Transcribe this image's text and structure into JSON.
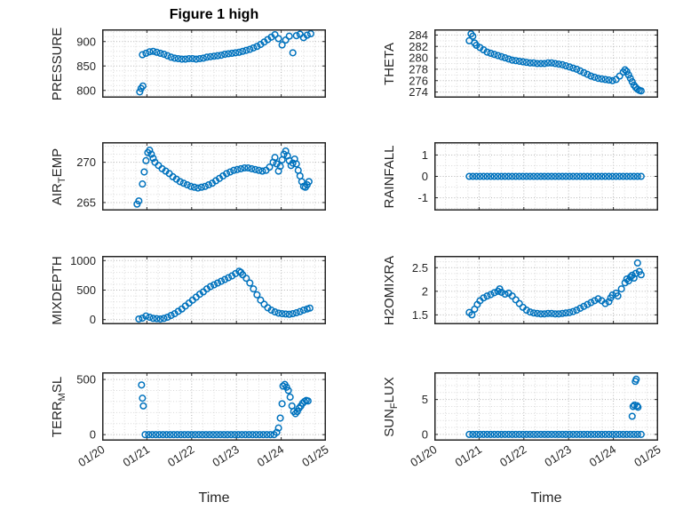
{
  "title": "Figure 1 high",
  "x_axis": {
    "label": "Time"
  },
  "colors": {
    "marker": "#0072BD",
    "axis": "#262626",
    "grid_major": "#b3b3b3",
    "grid_minor": "#d9d9d9"
  },
  "chart_data": [
    {
      "name": "PRESSURE",
      "type": "scatter",
      "ylabel": {
        "pre": "PRESSURE",
        "sub": "",
        "post": ""
      },
      "xlim": [
        20,
        25
      ],
      "ylim": [
        785,
        925
      ],
      "xticks": [
        20,
        21,
        22,
        23,
        24,
        25
      ],
      "xtick_labels": [
        "01/20",
        "01/21",
        "01/22",
        "01/23",
        "01/24",
        "01/25"
      ],
      "yticks": [
        800,
        850,
        900
      ],
      "x_minor": 0.25,
      "y_minor": 10,
      "show_x_labels": false,
      "x": [
        20.84,
        20.87,
        20.91,
        20.9,
        20.98,
        21.06,
        21.14,
        21.22,
        21.3,
        21.38,
        21.46,
        21.54,
        21.62,
        21.7,
        21.78,
        21.86,
        21.94,
        22.02,
        22.1,
        22.18,
        22.26,
        22.34,
        22.42,
        22.5,
        22.58,
        22.66,
        22.74,
        22.82,
        22.9,
        22.98,
        23.06,
        23.14,
        23.22,
        23.3,
        23.38,
        23.46,
        23.54,
        23.62,
        23.7,
        23.78,
        23.86,
        23.94,
        24.02,
        24.1,
        24.18,
        24.26,
        24.34,
        24.42,
        24.5,
        24.58,
        24.66
      ],
      "y": [
        797,
        804,
        809,
        873,
        876,
        879,
        880,
        878,
        876,
        874,
        871,
        868,
        866,
        865,
        864,
        864,
        865,
        865,
        864,
        865,
        866,
        868,
        869,
        870,
        871,
        872,
        874,
        875,
        876,
        877,
        878,
        880,
        882,
        884,
        887,
        890,
        894,
        899,
        904,
        909,
        914,
        906,
        893,
        903,
        911,
        877,
        912,
        915,
        908,
        913,
        916
      ]
    },
    {
      "name": "THETA",
      "type": "scatter",
      "ylabel": {
        "pre": "THETA",
        "sub": "",
        "post": ""
      },
      "xlim": [
        20,
        25
      ],
      "ylim": [
        273,
        285
      ],
      "xticks": [
        20,
        21,
        22,
        23,
        24,
        25
      ],
      "xtick_labels": [
        "01/20",
        "01/21",
        "01/22",
        "01/23",
        "01/24",
        "01/25"
      ],
      "yticks": [
        274,
        276,
        278,
        280,
        282,
        284
      ],
      "x_minor": 0.25,
      "y_minor": 1,
      "show_x_labels": false,
      "x": [
        20.78,
        20.82,
        20.86,
        20.9,
        20.94,
        21.02,
        21.1,
        21.18,
        21.26,
        21.34,
        21.42,
        21.5,
        21.58,
        21.66,
        21.74,
        21.82,
        21.9,
        21.98,
        22.06,
        22.14,
        22.22,
        22.3,
        22.38,
        22.46,
        22.54,
        22.62,
        22.7,
        22.78,
        22.86,
        22.94,
        23.02,
        23.1,
        23.18,
        23.26,
        23.34,
        23.42,
        23.5,
        23.58,
        23.66,
        23.74,
        23.82,
        23.9,
        23.98,
        24.06,
        24.14,
        24.22,
        24.26,
        24.3,
        24.34,
        24.38,
        24.42,
        24.46,
        24.5,
        24.54,
        24.58,
        24.62
      ],
      "y": [
        283.0,
        284.2,
        283.8,
        282.6,
        282.2,
        281.8,
        281.4,
        281.0,
        280.8,
        280.6,
        280.4,
        280.2,
        280.0,
        279.8,
        279.6,
        279.5,
        279.4,
        279.3,
        279.2,
        279.1,
        279.1,
        279.0,
        279.0,
        279.0,
        279.1,
        279.1,
        279.0,
        278.9,
        278.8,
        278.6,
        278.4,
        278.2,
        278.0,
        277.7,
        277.4,
        277.1,
        276.8,
        276.6,
        276.4,
        276.3,
        276.2,
        276.1,
        276.0,
        276.2,
        276.8,
        277.5,
        277.9,
        277.6,
        277.0,
        276.4,
        275.8,
        275.2,
        274.8,
        274.5,
        274.3,
        274.2
      ]
    },
    {
      "name": "AIR_TEMP",
      "type": "scatter",
      "ylabel": {
        "pre": "AIR",
        "sub": "T",
        "post": "EMP"
      },
      "xlim": [
        20,
        25
      ],
      "ylim": [
        264,
        272.5
      ],
      "xticks": [
        20,
        21,
        22,
        23,
        24,
        25
      ],
      "xtick_labels": [
        "01/20",
        "01/21",
        "01/22",
        "01/23",
        "01/24",
        "01/25"
      ],
      "yticks": [
        265,
        270
      ],
      "x_minor": 0.25,
      "y_minor": 1,
      "show_x_labels": false,
      "x": [
        20.78,
        20.82,
        20.9,
        20.94,
        20.98,
        21.02,
        21.06,
        21.1,
        21.14,
        21.18,
        21.26,
        21.34,
        21.42,
        21.5,
        21.58,
        21.66,
        21.74,
        21.82,
        21.9,
        21.98,
        22.06,
        22.14,
        22.22,
        22.3,
        22.38,
        22.46,
        22.54,
        22.62,
        22.7,
        22.78,
        22.86,
        22.94,
        23.02,
        23.1,
        23.18,
        23.26,
        23.34,
        23.42,
        23.5,
        23.58,
        23.66,
        23.74,
        23.82,
        23.86,
        23.9,
        23.94,
        23.98,
        24.02,
        24.06,
        24.1,
        24.14,
        24.18,
        24.22,
        24.26,
        24.3,
        24.34,
        24.38,
        24.42,
        24.46,
        24.5,
        24.54,
        24.58,
        24.62
      ],
      "y": [
        264.8,
        265.2,
        267.3,
        268.8,
        270.2,
        271.2,
        271.5,
        271.0,
        270.5,
        270.0,
        269.6,
        269.2,
        268.9,
        268.6,
        268.2,
        267.9,
        267.6,
        267.4,
        267.2,
        267.0,
        266.9,
        266.8,
        266.9,
        267.0,
        267.2,
        267.4,
        267.7,
        268.0,
        268.3,
        268.6,
        268.8,
        269.0,
        269.1,
        269.2,
        269.3,
        269.3,
        269.2,
        269.1,
        269.0,
        268.9,
        269.0,
        269.4,
        270.0,
        270.6,
        269.8,
        268.9,
        269.5,
        270.3,
        271.0,
        271.4,
        270.8,
        270.2,
        269.6,
        269.9,
        270.4,
        269.8,
        269.0,
        268.3,
        267.6,
        267.0,
        266.9,
        267.2,
        267.6
      ]
    },
    {
      "name": "RAINFALL",
      "type": "scatter",
      "ylabel": {
        "pre": "RAINFALL",
        "sub": "",
        "post": ""
      },
      "xlim": [
        20,
        25
      ],
      "ylim": [
        -1.6,
        1.6
      ],
      "xticks": [
        20,
        21,
        22,
        23,
        24,
        25
      ],
      "xtick_labels": [
        "01/20",
        "01/21",
        "01/22",
        "01/23",
        "01/24",
        "01/25"
      ],
      "yticks": [
        -1,
        0,
        1
      ],
      "x_minor": 0.25,
      "y_minor": 0.5,
      "show_x_labels": false,
      "x": [
        20.78,
        20.86,
        20.94,
        21.02,
        21.1,
        21.18,
        21.26,
        21.34,
        21.42,
        21.5,
        21.58,
        21.66,
        21.74,
        21.82,
        21.9,
        21.98,
        22.06,
        22.14,
        22.22,
        22.3,
        22.38,
        22.46,
        22.54,
        22.62,
        22.7,
        22.78,
        22.86,
        22.94,
        23.02,
        23.1,
        23.18,
        23.26,
        23.34,
        23.42,
        23.5,
        23.58,
        23.66,
        23.74,
        23.82,
        23.9,
        23.98,
        24.06,
        24.14,
        24.22,
        24.3,
        24.38,
        24.46,
        24.54,
        24.62
      ],
      "y": [
        0,
        0,
        0,
        0,
        0,
        0,
        0,
        0,
        0,
        0,
        0,
        0,
        0,
        0,
        0,
        0,
        0,
        0,
        0,
        0,
        0,
        0,
        0,
        0,
        0,
        0,
        0,
        0,
        0,
        0,
        0,
        0,
        0,
        0,
        0,
        0,
        0,
        0,
        0,
        0,
        0,
        0,
        0,
        0,
        0,
        0,
        0,
        0,
        0
      ]
    },
    {
      "name": "MIXDEPTH",
      "type": "scatter",
      "ylabel": {
        "pre": "MIXDEPTH",
        "sub": "",
        "post": ""
      },
      "xlim": [
        20,
        25
      ],
      "ylim": [
        -80,
        1080
      ],
      "xticks": [
        20,
        21,
        22,
        23,
        24,
        25
      ],
      "xtick_labels": [
        "01/20",
        "01/21",
        "01/22",
        "01/23",
        "01/24",
        "01/25"
      ],
      "yticks": [
        0,
        500,
        1000
      ],
      "x_minor": 0.25,
      "y_minor": 100,
      "show_x_labels": false,
      "x": [
        20.82,
        20.9,
        20.98,
        21.06,
        21.14,
        21.22,
        21.3,
        21.38,
        21.46,
        21.54,
        21.62,
        21.7,
        21.78,
        21.86,
        21.94,
        22.02,
        22.1,
        22.18,
        22.26,
        22.34,
        22.42,
        22.5,
        22.58,
        22.66,
        22.74,
        22.82,
        22.9,
        22.98,
        23.06,
        23.1,
        23.14,
        23.22,
        23.3,
        23.38,
        23.46,
        23.54,
        23.62,
        23.7,
        23.78,
        23.86,
        23.94,
        24.02,
        24.1,
        24.18,
        24.26,
        24.34,
        24.42,
        24.5,
        24.58,
        24.64
      ],
      "y": [
        10,
        25,
        60,
        40,
        20,
        15,
        10,
        20,
        40,
        70,
        100,
        140,
        180,
        230,
        280,
        330,
        380,
        430,
        470,
        520,
        560,
        590,
        620,
        650,
        680,
        710,
        740,
        780,
        820,
        800,
        760,
        700,
        620,
        520,
        420,
        330,
        260,
        200,
        160,
        130,
        110,
        100,
        95,
        90,
        100,
        115,
        135,
        160,
        180,
        195
      ]
    },
    {
      "name": "H2OMIXRA",
      "type": "scatter",
      "ylabel": {
        "pre": "H2OMIXRA",
        "sub": "",
        "post": ""
      },
      "xlim": [
        20,
        25
      ],
      "ylim": [
        1.3,
        2.75
      ],
      "xticks": [
        20,
        21,
        22,
        23,
        24,
        25
      ],
      "xtick_labels": [
        "01/20",
        "01/21",
        "01/22",
        "01/23",
        "01/24",
        "01/25"
      ],
      "yticks": [
        1.5,
        2,
        2.5
      ],
      "x_minor": 0.25,
      "y_minor": 0.125,
      "show_x_labels": false,
      "x": [
        20.78,
        20.84,
        20.9,
        20.96,
        21.02,
        21.1,
        21.18,
        21.26,
        21.34,
        21.42,
        21.46,
        21.5,
        21.58,
        21.66,
        21.74,
        21.82,
        21.9,
        21.98,
        22.06,
        22.14,
        22.22,
        22.3,
        22.38,
        22.46,
        22.54,
        22.62,
        22.7,
        22.78,
        22.86,
        22.94,
        23.02,
        23.1,
        23.18,
        23.26,
        23.34,
        23.42,
        23.5,
        23.58,
        23.66,
        23.74,
        23.82,
        23.9,
        23.94,
        23.98,
        24.06,
        24.1,
        24.18,
        24.26,
        24.3,
        24.34,
        24.38,
        24.42,
        24.46,
        24.5,
        24.54,
        24.58,
        24.62
      ],
      "y": [
        1.55,
        1.5,
        1.62,
        1.72,
        1.8,
        1.86,
        1.9,
        1.93,
        1.97,
        2.0,
        2.05,
        1.98,
        1.94,
        1.96,
        1.9,
        1.82,
        1.74,
        1.66,
        1.6,
        1.56,
        1.54,
        1.53,
        1.52,
        1.52,
        1.53,
        1.53,
        1.52,
        1.52,
        1.53,
        1.54,
        1.55,
        1.57,
        1.6,
        1.64,
        1.68,
        1.72,
        1.76,
        1.8,
        1.84,
        1.8,
        1.74,
        1.78,
        1.86,
        1.92,
        1.96,
        1.9,
        2.05,
        2.18,
        2.26,
        2.22,
        2.3,
        2.34,
        2.28,
        2.38,
        2.6,
        2.42,
        2.35
      ]
    },
    {
      "name": "TERR_MSL",
      "type": "scatter",
      "ylabel": {
        "pre": "TERR",
        "sub": "M",
        "post": "SL"
      },
      "xlim": [
        20,
        25
      ],
      "ylim": [
        -55,
        565
      ],
      "xticks": [
        20,
        21,
        22,
        23,
        24,
        25
      ],
      "xtick_labels": [
        "01/20",
        "01/21",
        "01/22",
        "01/23",
        "01/24",
        "01/25"
      ],
      "yticks": [
        0,
        500
      ],
      "x_minor": 0.25,
      "y_minor": 100,
      "show_x_labels": true,
      "x": [
        20.88,
        20.9,
        20.92,
        20.96,
        21.04,
        21.12,
        21.2,
        21.28,
        21.36,
        21.44,
        21.52,
        21.6,
        21.68,
        21.76,
        21.84,
        21.92,
        22.0,
        22.08,
        22.16,
        22.24,
        22.32,
        22.4,
        22.48,
        22.56,
        22.64,
        22.72,
        22.8,
        22.88,
        22.96,
        23.04,
        23.12,
        23.2,
        23.28,
        23.36,
        23.44,
        23.52,
        23.6,
        23.68,
        23.76,
        23.84,
        23.9,
        23.94,
        23.98,
        24.02,
        24.04,
        24.08,
        24.12,
        24.16,
        24.2,
        24.24,
        24.28,
        24.32,
        24.36,
        24.4,
        24.44,
        24.48,
        24.52,
        24.56,
        24.6
      ],
      "y": [
        450,
        330,
        260,
        0,
        0,
        0,
        0,
        0,
        0,
        0,
        0,
        0,
        0,
        0,
        0,
        0,
        0,
        0,
        0,
        0,
        0,
        0,
        0,
        0,
        0,
        0,
        0,
        0,
        0,
        0,
        0,
        0,
        0,
        0,
        0,
        0,
        0,
        0,
        0,
        0,
        20,
        60,
        150,
        280,
        440,
        455,
        430,
        400,
        340,
        260,
        210,
        190,
        210,
        240,
        260,
        285,
        300,
        310,
        305
      ]
    },
    {
      "name": "SUN_FLUX",
      "type": "scatter",
      "ylabel": {
        "pre": "SUN",
        "sub": "F",
        "post": "LUX"
      },
      "xlim": [
        20,
        25
      ],
      "ylim": [
        -0.9,
        8.9
      ],
      "xticks": [
        20,
        21,
        22,
        23,
        24,
        25
      ],
      "xtick_labels": [
        "01/20",
        "01/21",
        "01/22",
        "01/23",
        "01/24",
        "01/25"
      ],
      "yticks": [
        0,
        5
      ],
      "x_minor": 0.25,
      "y_minor": 1,
      "show_x_labels": true,
      "x": [
        20.78,
        20.86,
        20.94,
        21.02,
        21.1,
        21.18,
        21.26,
        21.34,
        21.42,
        21.5,
        21.58,
        21.66,
        21.74,
        21.82,
        21.9,
        21.98,
        22.06,
        22.14,
        22.22,
        22.3,
        22.38,
        22.46,
        22.54,
        22.62,
        22.7,
        22.78,
        22.86,
        22.94,
        23.02,
        23.1,
        23.18,
        23.26,
        23.34,
        23.42,
        23.5,
        23.58,
        23.66,
        23.74,
        23.82,
        23.9,
        23.98,
        24.06,
        24.14,
        24.22,
        24.3,
        24.38,
        24.42,
        24.44,
        24.47,
        24.49,
        24.51,
        24.53,
        24.55,
        24.46,
        24.54,
        24.62
      ],
      "y": [
        0,
        0,
        0,
        0,
        0,
        0,
        0,
        0,
        0,
        0,
        0,
        0,
        0,
        0,
        0,
        0,
        0,
        0,
        0,
        0,
        0,
        0,
        0,
        0,
        0,
        0,
        0,
        0,
        0,
        0,
        0,
        0,
        0,
        0,
        0,
        0,
        0,
        0,
        0,
        0,
        0,
        0,
        0,
        0,
        0,
        0,
        2.6,
        4.0,
        4.2,
        7.6,
        7.9,
        4.1,
        3.9,
        0,
        0,
        0
      ]
    }
  ]
}
